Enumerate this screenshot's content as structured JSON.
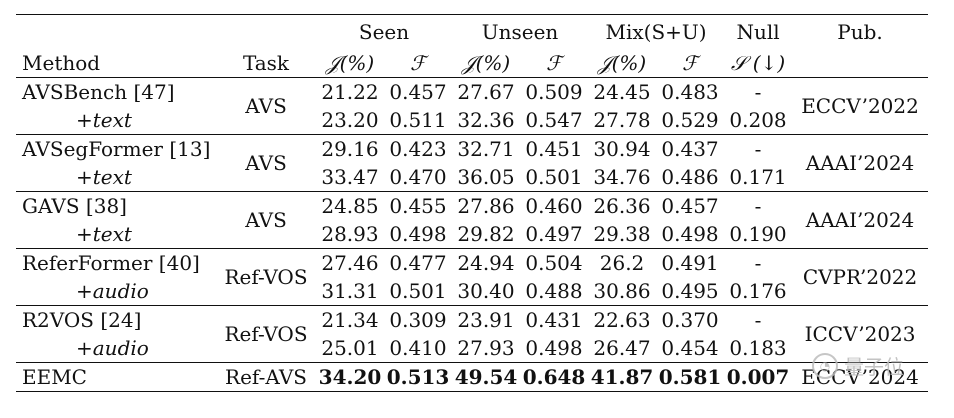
{
  "header": {
    "groups": [
      "Seen",
      "Unseen",
      "Mix(S+U)",
      "Null",
      "Pub."
    ],
    "cols": [
      "Method",
      "Task",
      "𝒥(%)",
      "ℱ",
      "𝒥(%)",
      "ℱ",
      "𝒥(%)",
      "ℱ",
      "𝒮 (↓)"
    ]
  },
  "rows": [
    {
      "method": "AVSBench [47]",
      "sub": "+text",
      "task": "AVS",
      "pub": "ECCV’2022",
      "r1": [
        "21.22",
        "0.457",
        "27.67",
        "0.509",
        "24.45",
        "0.483",
        "-"
      ],
      "r2": [
        "23.20",
        "0.511",
        "32.36",
        "0.547",
        "27.78",
        "0.529",
        "0.208"
      ]
    },
    {
      "method": "AVSegFormer [13]",
      "sub": "+text",
      "task": "AVS",
      "pub": "AAAI’2024",
      "r1": [
        "29.16",
        "0.423",
        "32.71",
        "0.451",
        "30.94",
        "0.437",
        "-"
      ],
      "r2": [
        "33.47",
        "0.470",
        "36.05",
        "0.501",
        "34.76",
        "0.486",
        "0.171"
      ]
    },
    {
      "method": "GAVS [38]",
      "sub": "+text",
      "task": "AVS",
      "pub": "AAAI’2024",
      "r1": [
        "24.85",
        "0.455",
        "27.86",
        "0.460",
        "26.36",
        "0.457",
        "-"
      ],
      "r2": [
        "28.93",
        "0.498",
        "29.82",
        "0.497",
        "29.38",
        "0.498",
        "0.190"
      ]
    },
    {
      "method": "ReferFormer [40]",
      "sub": "+audio",
      "task": "Ref-VOS",
      "pub": "CVPR’2022",
      "r1": [
        "27.46",
        "0.477",
        "24.94",
        "0.504",
        "26.2",
        "0.491",
        "-"
      ],
      "r2": [
        "31.31",
        "0.501",
        "30.40",
        "0.488",
        "30.86",
        "0.495",
        "0.176"
      ]
    },
    {
      "method": "R2VOS [24]",
      "sub": "+audio",
      "task": "Ref-VOS",
      "pub": "ICCV’2023",
      "r1": [
        "21.34",
        "0.309",
        "23.91",
        "0.431",
        "22.63",
        "0.370",
        "-"
      ],
      "r2": [
        "25.01",
        "0.410",
        "27.93",
        "0.498",
        "26.47",
        "0.454",
        "0.183"
      ]
    }
  ],
  "final": {
    "method": "EEMC",
    "task": "Ref-AVS",
    "vals": [
      "34.20",
      "0.513",
      "49.54",
      "0.648",
      "41.87",
      "0.581",
      "0.007"
    ],
    "pub": "ECCV’2024"
  },
  "watermark": "量子位"
}
